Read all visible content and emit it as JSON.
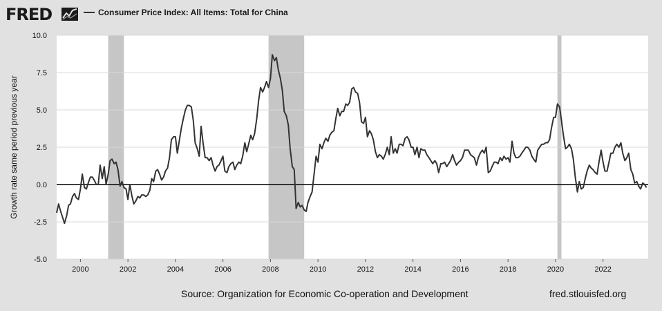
{
  "header": {
    "logo_text": "FRED",
    "logo_icon": "trend-line-icon"
  },
  "footer": {
    "source": "Source: Organization for Economic Co-operation and Development",
    "site": "fred.stlouisfed.org"
  },
  "chart_data": {
    "type": "line",
    "title": "",
    "ylabel": "Growth rate same period previous year",
    "xlabel": "",
    "xlim": [
      1999.0,
      2023.9
    ],
    "ylim": [
      -5.0,
      10.0
    ],
    "yticks": [
      -5.0,
      -2.5,
      0.0,
      2.5,
      5.0,
      7.5,
      10.0
    ],
    "ytick_labels": [
      "-5.0",
      "-2.5",
      "0.0",
      "2.5",
      "5.0",
      "7.5",
      "10.0"
    ],
    "xticks": [
      2000,
      2002,
      2004,
      2006,
      2008,
      2010,
      2012,
      2014,
      2016,
      2018,
      2020,
      2022
    ],
    "xtick_labels": [
      "2000",
      "2002",
      "2004",
      "2006",
      "2008",
      "2010",
      "2012",
      "2014",
      "2016",
      "2018",
      "2020",
      "2022"
    ],
    "grid": "horizontal",
    "legend": "top-left",
    "recessions": [
      [
        2001.17,
        2001.83
      ],
      [
        2007.92,
        2009.42
      ],
      [
        2020.08,
        2020.25
      ]
    ],
    "colors": {
      "line": "#333333",
      "recession": "#c6c6c6",
      "plot_bg": "#ffffff",
      "page_bg": "#e1e1e1",
      "grid": "#d8d8d8",
      "zero_line": "#000000"
    },
    "series": [
      {
        "name": "Consumer Price Index: All Items: Total for China",
        "x": [
          1999.0,
          1999.08,
          1999.17,
          1999.25,
          1999.33,
          1999.42,
          1999.5,
          1999.58,
          1999.67,
          1999.75,
          1999.83,
          1999.92,
          2000.0,
          2000.08,
          2000.17,
          2000.25,
          2000.33,
          2000.42,
          2000.5,
          2000.58,
          2000.67,
          2000.75,
          2000.83,
          2000.92,
          2001.0,
          2001.08,
          2001.17,
          2001.25,
          2001.33,
          2001.42,
          2001.5,
          2001.58,
          2001.67,
          2001.75,
          2001.83,
          2001.92,
          2002.0,
          2002.08,
          2002.17,
          2002.25,
          2002.33,
          2002.42,
          2002.5,
          2002.58,
          2002.67,
          2002.75,
          2002.83,
          2002.92,
          2003.0,
          2003.08,
          2003.17,
          2003.25,
          2003.33,
          2003.42,
          2003.5,
          2003.58,
          2003.67,
          2003.75,
          2003.83,
          2003.92,
          2004.0,
          2004.08,
          2004.17,
          2004.25,
          2004.33,
          2004.42,
          2004.5,
          2004.58,
          2004.67,
          2004.75,
          2004.83,
          2004.92,
          2005.0,
          2005.08,
          2005.17,
          2005.25,
          2005.33,
          2005.42,
          2005.5,
          2005.58,
          2005.67,
          2005.75,
          2005.83,
          2005.92,
          2006.0,
          2006.08,
          2006.17,
          2006.25,
          2006.33,
          2006.42,
          2006.5,
          2006.58,
          2006.67,
          2006.75,
          2006.83,
          2006.92,
          2007.0,
          2007.08,
          2007.17,
          2007.25,
          2007.33,
          2007.42,
          2007.5,
          2007.58,
          2007.67,
          2007.75,
          2007.83,
          2007.92,
          2008.0,
          2008.08,
          2008.17,
          2008.25,
          2008.33,
          2008.42,
          2008.5,
          2008.58,
          2008.67,
          2008.75,
          2008.83,
          2008.92,
          2009.0,
          2009.08,
          2009.17,
          2009.25,
          2009.33,
          2009.42,
          2009.5,
          2009.58,
          2009.67,
          2009.75,
          2009.83,
          2009.92,
          2010.0,
          2010.08,
          2010.17,
          2010.25,
          2010.33,
          2010.42,
          2010.5,
          2010.58,
          2010.67,
          2010.75,
          2010.83,
          2010.92,
          2011.0,
          2011.08,
          2011.17,
          2011.25,
          2011.33,
          2011.42,
          2011.5,
          2011.58,
          2011.67,
          2011.75,
          2011.83,
          2011.92,
          2012.0,
          2012.08,
          2012.17,
          2012.25,
          2012.33,
          2012.42,
          2012.5,
          2012.58,
          2012.67,
          2012.75,
          2012.83,
          2012.92,
          2013.0,
          2013.08,
          2013.17,
          2013.25,
          2013.33,
          2013.42,
          2013.5,
          2013.58,
          2013.67,
          2013.75,
          2013.83,
          2013.92,
          2014.0,
          2014.08,
          2014.17,
          2014.25,
          2014.33,
          2014.42,
          2014.5,
          2014.58,
          2014.67,
          2014.75,
          2014.83,
          2014.92,
          2015.0,
          2015.08,
          2015.17,
          2015.25,
          2015.33,
          2015.42,
          2015.5,
          2015.58,
          2015.67,
          2015.75,
          2015.83,
          2015.92,
          2016.0,
          2016.08,
          2016.17,
          2016.25,
          2016.33,
          2016.42,
          2016.5,
          2016.58,
          2016.67,
          2016.75,
          2016.83,
          2016.92,
          2017.0,
          2017.08,
          2017.17,
          2017.25,
          2017.33,
          2017.42,
          2017.5,
          2017.58,
          2017.67,
          2017.75,
          2017.83,
          2017.92,
          2018.0,
          2018.08,
          2018.17,
          2018.25,
          2018.33,
          2018.42,
          2018.5,
          2018.58,
          2018.67,
          2018.75,
          2018.83,
          2018.92,
          2019.0,
          2019.08,
          2019.17,
          2019.25,
          2019.33,
          2019.42,
          2019.5,
          2019.58,
          2019.67,
          2019.75,
          2019.83,
          2019.92,
          2020.0,
          2020.08,
          2020.17,
          2020.25,
          2020.33,
          2020.42,
          2020.5,
          2020.58,
          2020.67,
          2020.75,
          2020.83,
          2020.92,
          2021.0,
          2021.08,
          2021.17,
          2021.25,
          2021.33,
          2021.42,
          2021.5,
          2021.58,
          2021.67,
          2021.75,
          2021.83,
          2021.92,
          2022.0,
          2022.08,
          2022.17,
          2022.25,
          2022.33,
          2022.42,
          2022.5,
          2022.58,
          2022.67,
          2022.75,
          2022.83,
          2022.92,
          2023.0,
          2023.08,
          2023.17,
          2023.25,
          2023.33,
          2023.42,
          2023.5,
          2023.58,
          2023.67,
          2023.75,
          2023.83
        ],
        "y": [
          -1.9,
          -1.3,
          -1.8,
          -2.2,
          -2.6,
          -2.1,
          -1.4,
          -1.3,
          -0.8,
          -0.6,
          -0.9,
          -1.0,
          -0.3,
          0.7,
          -0.2,
          -0.3,
          0.1,
          0.5,
          0.5,
          0.3,
          0.0,
          0.0,
          1.3,
          0.4,
          1.2,
          0.0,
          0.7,
          1.6,
          1.7,
          1.4,
          1.5,
          1.0,
          -0.1,
          0.2,
          -0.2,
          -0.3,
          -1.0,
          0.0,
          -0.8,
          -1.3,
          -1.1,
          -0.8,
          -0.9,
          -0.7,
          -0.7,
          -0.8,
          -0.7,
          -0.4,
          0.4,
          0.2,
          0.9,
          1.0,
          0.7,
          0.3,
          0.5,
          0.9,
          1.1,
          1.8,
          3.0,
          3.2,
          3.2,
          2.1,
          3.0,
          3.8,
          4.4,
          5.0,
          5.3,
          5.3,
          5.2,
          4.3,
          2.8,
          2.4,
          1.9,
          3.9,
          2.7,
          1.8,
          1.8,
          1.6,
          1.8,
          1.3,
          0.9,
          1.2,
          1.3,
          1.6,
          1.9,
          0.9,
          0.8,
          1.2,
          1.4,
          1.5,
          1.0,
          1.3,
          1.5,
          1.4,
          1.9,
          2.8,
          2.2,
          2.7,
          3.3,
          3.0,
          3.4,
          4.4,
          5.6,
          6.5,
          6.2,
          6.5,
          6.9,
          6.5,
          7.1,
          8.7,
          8.3,
          8.5,
          7.7,
          7.1,
          6.3,
          4.9,
          4.6,
          4.0,
          2.4,
          1.2,
          1.0,
          -1.6,
          -1.2,
          -1.5,
          -1.4,
          -1.7,
          -1.8,
          -1.2,
          -0.8,
          -0.5,
          0.6,
          1.9,
          1.5,
          2.7,
          2.4,
          2.8,
          3.1,
          2.9,
          3.3,
          3.5,
          3.6,
          4.4,
          5.1,
          4.6,
          4.9,
          4.9,
          5.4,
          5.3,
          5.5,
          6.4,
          6.5,
          6.2,
          6.1,
          5.5,
          4.2,
          4.1,
          4.5,
          3.2,
          3.6,
          3.4,
          3.0,
          2.2,
          1.8,
          2.0,
          1.9,
          1.7,
          2.0,
          2.5,
          2.0,
          3.2,
          2.1,
          2.4,
          2.1,
          2.7,
          2.7,
          2.6,
          3.1,
          3.2,
          3.0,
          2.5,
          2.5,
          2.0,
          2.5,
          1.8,
          2.4,
          2.3,
          2.3,
          2.0,
          1.8,
          1.6,
          1.4,
          1.6,
          1.4,
          0.8,
          1.4,
          1.4,
          1.5,
          1.2,
          1.4,
          1.6,
          2.0,
          1.6,
          1.3,
          1.5,
          1.6,
          1.8,
          2.3,
          2.3,
          2.3,
          2.0,
          1.9,
          1.8,
          1.3,
          1.8,
          2.1,
          2.3,
          2.1,
          2.5,
          0.8,
          0.9,
          1.2,
          1.5,
          1.5,
          1.4,
          1.8,
          1.6,
          1.9,
          1.7,
          1.8,
          1.5,
          2.9,
          2.1,
          1.8,
          1.8,
          1.9,
          2.1,
          2.3,
          2.5,
          2.5,
          2.3,
          1.9,
          1.7,
          1.5,
          2.3,
          2.5,
          2.7,
          2.7,
          2.8,
          2.8,
          3.0,
          3.8,
          4.5,
          4.5,
          5.4,
          5.2,
          4.3,
          3.3,
          2.4,
          2.5,
          2.7,
          2.4,
          1.7,
          0.5,
          -0.5,
          0.2,
          -0.3,
          -0.2,
          0.4,
          0.9,
          1.3,
          1.1,
          1.0,
          0.8,
          0.7,
          1.5,
          2.3,
          1.5,
          0.9,
          0.9,
          1.5,
          2.1,
          2.1,
          2.5,
          2.7,
          2.5,
          2.8,
          2.1,
          1.6,
          1.8,
          2.1,
          1.0,
          0.7,
          0.1,
          0.2,
          -0.1,
          -0.3,
          0.1,
          0.0,
          -0.2
        ]
      }
    ]
  }
}
